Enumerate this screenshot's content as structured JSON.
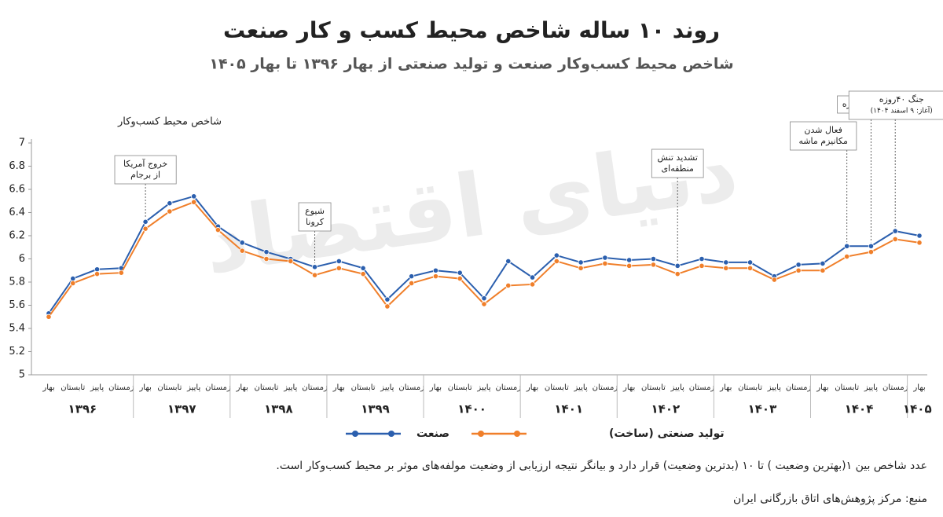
{
  "chart_data": {
    "type": "line",
    "title": "روند ۱۰ ساله شاخص محیط کسب و کار صنعت",
    "subtitle": "شاخص محیط کسب‌وکار صنعت و تولید صنعتی از بهار ۱۳۹۶ تا بهار ۱۴۰۵",
    "y_axis_label": "شاخص محیط کسب‌وکار",
    "watermark": "دنیای اقتصاد",
    "categories": [
      "بهار",
      "تابستان",
      "پاییز",
      "زمستان",
      "بهار",
      "تابستان",
      "پاییز",
      "زمستان",
      "بهار",
      "تابستان",
      "پاییز",
      "زمستان",
      "بهار",
      "تابستان",
      "پاییز",
      "زمستان",
      "بهار",
      "تابستان",
      "پاییز",
      "زمستان",
      "بهار",
      "تابستان",
      "پاییز",
      "زمستان",
      "بهار",
      "تابستان",
      "پاییز",
      "زمستان",
      "بهار",
      "تابستان",
      "پاییز",
      "زمستان",
      "بهار",
      "تابستان",
      "پاییز",
      "زمستان",
      "بهار"
    ],
    "year_labels": [
      "۱۳۹۶",
      "۱۳۹۷",
      "۱۳۹۸",
      "۱۳۹۹",
      "۱۴۰۰",
      "۱۴۰۱",
      "۱۴۰۲",
      "۱۴۰۳",
      "۱۴۰۴",
      "۱۴۰۵"
    ],
    "series": [
      {
        "name": "صنعت",
        "color": "#2b5fae",
        "values": [
          5.53,
          5.83,
          5.91,
          5.92,
          6.32,
          6.48,
          6.54,
          6.28,
          6.14,
          6.06,
          6.0,
          5.93,
          5.98,
          5.92,
          5.65,
          5.85,
          5.9,
          5.88,
          5.66,
          5.98,
          5.84,
          6.03,
          5.97,
          6.01,
          5.99,
          6.0,
          5.94,
          6.0,
          5.97,
          5.97,
          5.85,
          5.95,
          5.96,
          6.11,
          6.11,
          6.24,
          6.2
        ]
      },
      {
        "name": "تولید صنعتی (ساخت)",
        "color": "#f07f2a",
        "values": [
          5.5,
          5.79,
          5.87,
          5.88,
          6.26,
          6.41,
          6.49,
          6.25,
          6.07,
          6.0,
          5.98,
          5.86,
          5.92,
          5.87,
          5.59,
          5.79,
          5.85,
          5.83,
          5.61,
          5.77,
          5.78,
          5.98,
          5.92,
          5.96,
          5.94,
          5.95,
          5.87,
          5.94,
          5.92,
          5.92,
          5.82,
          5.9,
          5.9,
          6.02,
          6.06,
          6.17,
          6.14
        ]
      }
    ],
    "ylim": [
      5,
      7
    ],
    "yticks": [
      5,
      5.2,
      5.4,
      5.6,
      5.8,
      6,
      6.2,
      6.4,
      6.6,
      6.8,
      7
    ],
    "grid": false,
    "annotations": [
      {
        "lines": [
          "خروج آمریکا",
          "از برجام"
        ],
        "index": 4
      },
      {
        "lines": [
          "شیوع",
          "کرونا"
        ],
        "index": 11
      },
      {
        "lines": [
          "تشدید تنش",
          "منطقه‌ای"
        ],
        "index": 26
      },
      {
        "lines": [
          "فعال شدن",
          "مکانیزم ماشه"
        ],
        "index": 33
      },
      {
        "lines": [
          "جنگ۱۲روزه"
        ],
        "index": 34
      },
      {
        "lines": [
          "جنگ ۴۰روزه",
          "(آغاز: ۹ اسفند ۱۴۰۴)"
        ],
        "index": 35
      }
    ],
    "footnote": "عدد شاخص بین ۱(بهترین وضعیت ) تا ۱۰ (بدترین وضعیت) قرار دارد و بیانگر نتیجه ارزیابی از وضعیت مولفه‌های موثر بر محیط کسب‌وکار است.",
    "source": "منبع: مرکز پژوهش‌های اتاق بازرگانی ایران"
  }
}
